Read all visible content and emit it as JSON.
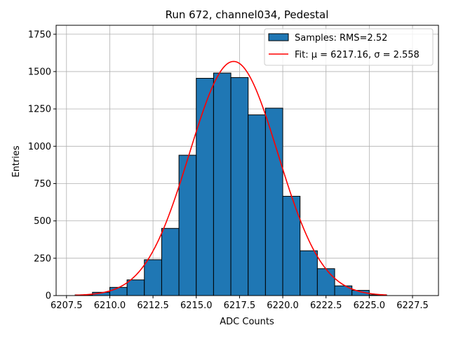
{
  "chart_data": {
    "type": "bar",
    "title": "Run 672, channel034, Pedestal",
    "xlabel": "ADC Counts",
    "ylabel": "Entries",
    "xlim": [
      6206.9,
      6229
    ],
    "ylim": [
      0,
      1810
    ],
    "xticks": [
      6207.5,
      6210.0,
      6212.5,
      6215.0,
      6217.5,
      6220.0,
      6222.5,
      6225.0,
      6227.5
    ],
    "xtick_labels": [
      "6207.5",
      "6210.0",
      "6212.5",
      "6215.0",
      "6217.5",
      "6220.0",
      "6222.5",
      "6225.0",
      "6227.5"
    ],
    "yticks": [
      0,
      250,
      500,
      750,
      1000,
      1250,
      1500,
      1750
    ],
    "ytick_labels": [
      "0",
      "250",
      "500",
      "750",
      "1000",
      "1250",
      "1500",
      "1750"
    ],
    "grid": true,
    "legend_position": "top-right",
    "histogram": {
      "name": "Samples: RMS=2.52",
      "color": "#1f77b4",
      "edge_color": "#000000",
      "bins": [
        {
          "x0": 6208,
          "x1": 6209,
          "count": 5
        },
        {
          "x0": 6209,
          "x1": 6210,
          "count": 22
        },
        {
          "x0": 6210,
          "x1": 6211,
          "count": 55
        },
        {
          "x0": 6211,
          "x1": 6212,
          "count": 105
        },
        {
          "x0": 6212,
          "x1": 6213,
          "count": 240
        },
        {
          "x0": 6213,
          "x1": 6214,
          "count": 450
        },
        {
          "x0": 6214,
          "x1": 6215,
          "count": 940
        },
        {
          "x0": 6215,
          "x1": 6216,
          "count": 1455
        },
        {
          "x0": 6216,
          "x1": 6217,
          "count": 1490
        },
        {
          "x0": 6217,
          "x1": 6218,
          "count": 1460
        },
        {
          "x0": 6218,
          "x1": 6219,
          "count": 1210
        },
        {
          "x0": 6219,
          "x1": 6220,
          "count": 1255
        },
        {
          "x0": 6220,
          "x1": 6221,
          "count": 665
        },
        {
          "x0": 6221,
          "x1": 6222,
          "count": 300
        },
        {
          "x0": 6222,
          "x1": 6223,
          "count": 180
        },
        {
          "x0": 6223,
          "x1": 6224,
          "count": 65
        },
        {
          "x0": 6224,
          "x1": 6225,
          "count": 35
        },
        {
          "x0": 6225,
          "x1": 6226,
          "count": 5
        }
      ]
    },
    "fit": {
      "name": "Fit: μ = 6217.16, σ = 2.558",
      "color": "#ff0000",
      "mu": 6217.16,
      "sigma": 2.558,
      "amplitude": 1568,
      "x_range": [
        6208,
        6226
      ]
    }
  }
}
